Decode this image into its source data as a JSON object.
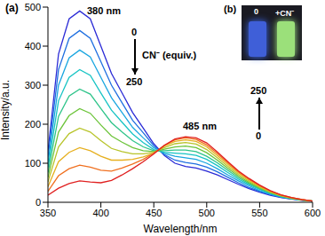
{
  "chart_data": {
    "type": "line",
    "panel_label": "(a)",
    "x_label": "Wavelength/nm",
    "y_label": "Intensity/a.u.",
    "x": [
      350,
      360,
      370,
      380,
      390,
      400,
      410,
      420,
      430,
      440,
      450,
      460,
      470,
      480,
      490,
      500,
      510,
      520,
      530,
      540,
      550,
      560,
      570,
      580,
      590,
      600
    ],
    "xlim": [
      350,
      600
    ],
    "xticks": [
      350,
      400,
      450,
      500,
      550,
      600
    ],
    "ylim": [
      0,
      500
    ],
    "yticks": [
      0,
      100,
      200,
      300,
      400,
      500
    ],
    "grid": false,
    "series": [
      {
        "color": "#2b2bd6",
        "values": [
          130,
          380,
          470,
          490,
          470,
          400,
          330,
          280,
          230,
          190,
          150,
          120,
          100,
          92,
          88,
          80,
          70,
          58,
          46,
          35,
          26,
          18,
          12,
          8,
          5,
          3
        ]
      },
      {
        "color": "#1f6fe0",
        "values": [
          115,
          340,
          420,
          440,
          420,
          360,
          300,
          255,
          210,
          178,
          145,
          122,
          108,
          102,
          98,
          90,
          78,
          64,
          50,
          38,
          28,
          20,
          13,
          9,
          6,
          3
        ]
      },
      {
        "color": "#1aa6e0",
        "values": [
          100,
          300,
          370,
          390,
          372,
          320,
          268,
          230,
          192,
          165,
          140,
          125,
          118,
          114,
          110,
          100,
          86,
          70,
          55,
          42,
          30,
          21,
          14,
          9,
          6,
          3
        ]
      },
      {
        "color": "#17c4c4",
        "values": [
          88,
          260,
          320,
          340,
          325,
          280,
          236,
          205,
          175,
          153,
          135,
          128,
          126,
          124,
          120,
          110,
          94,
          76,
          59,
          45,
          33,
          23,
          15,
          10,
          6,
          3
        ]
      },
      {
        "color": "#2ec48a",
        "values": [
          76,
          220,
          272,
          290,
          277,
          240,
          204,
          180,
          158,
          142,
          132,
          132,
          134,
          134,
          130,
          118,
          101,
          82,
          63,
          48,
          35,
          24,
          16,
          10,
          6,
          3
        ]
      },
      {
        "color": "#6cc43a",
        "values": [
          64,
          180,
          222,
          240,
          228,
          198,
          170,
          154,
          140,
          132,
          130,
          136,
          142,
          144,
          140,
          127,
          108,
          87,
          67,
          51,
          37,
          25,
          16,
          10,
          6,
          3
        ]
      },
      {
        "color": "#b8c42a",
        "values": [
          52,
          142,
          176,
          190,
          180,
          158,
          138,
          130,
          124,
          124,
          128,
          140,
          150,
          153,
          149,
          135,
          114,
          92,
          71,
          54,
          39,
          26,
          17,
          11,
          6,
          3
        ]
      },
      {
        "color": "#e6b020",
        "values": [
          40,
          104,
          128,
          140,
          132,
          118,
          108,
          108,
          110,
          116,
          126,
          144,
          156,
          160,
          156,
          142,
          120,
          97,
          75,
          57,
          41,
          28,
          18,
          11,
          7,
          3
        ]
      },
      {
        "color": "#f07020",
        "values": [
          28,
          68,
          86,
          95,
          90,
          82,
          80,
          88,
          98,
          110,
          126,
          146,
          160,
          165,
          161,
          147,
          125,
          101,
          78,
          59,
          43,
          29,
          19,
          12,
          7,
          3
        ]
      },
      {
        "color": "#e02020",
        "values": [
          18,
          36,
          48,
          55,
          52,
          50,
          56,
          70,
          86,
          104,
          124,
          146,
          162,
          168,
          165,
          152,
          129,
          104,
          80,
          61,
          44,
          30,
          19,
          12,
          7,
          3
        ]
      }
    ],
    "peak_labels": [
      "380 nm",
      "485 nm"
    ],
    "arrows": [
      {
        "start": "0",
        "end": "250",
        "label": "CN⁻ (equiv.)",
        "direction": "down"
      },
      {
        "start": "0",
        "end": "250",
        "direction": "up"
      }
    ],
    "inset": {
      "label": "(b)",
      "vials": [
        "0",
        "+CN⁻"
      ]
    }
  }
}
